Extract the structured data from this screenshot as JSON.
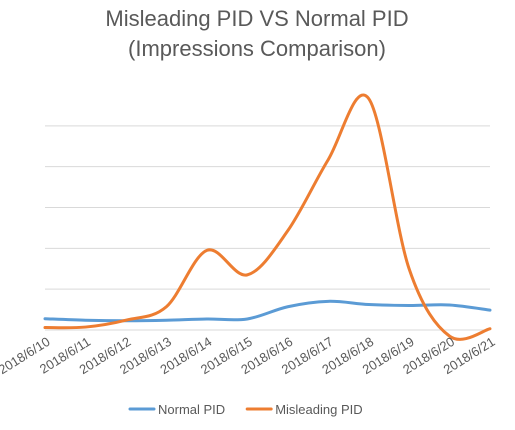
{
  "chart_data": {
    "type": "line",
    "title_lines": [
      "Misleading PID VS Normal PID",
      "(Impressions Comparison)"
    ],
    "categories": [
      "2018/6/10",
      "2018/6/11",
      "2018/6/12",
      "2018/6/13",
      "2018/6/14",
      "2018/6/15",
      "2018/6/16",
      "2018/6/17",
      "2018/6/18",
      "2018/6/19",
      "2018/6/20",
      "2018/6/21"
    ],
    "ylim": [
      0,
      100
    ],
    "grid": true,
    "y_tick_labels_shown": false,
    "legend_position": "bottom",
    "series": [
      {
        "name": "Normal PID",
        "color": "#5b9bd5",
        "values": [
          4.6,
          4.0,
          3.8,
          4.0,
          4.5,
          4.5,
          9.5,
          11.7,
          10.4,
          10.0,
          10.2,
          8.1
        ]
      },
      {
        "name": "Misleading PID",
        "color": "#ed7d31",
        "values": [
          1.0,
          1.2,
          4.0,
          9.5,
          32.5,
          22.5,
          40.5,
          69.5,
          94.5,
          25.0,
          -2.5,
          0.5
        ]
      }
    ]
  }
}
